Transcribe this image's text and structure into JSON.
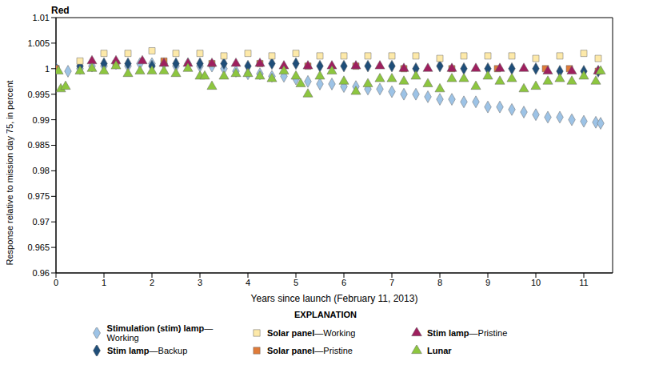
{
  "chart_data": {
    "type": "scatter",
    "title": "Red",
    "xlabel": "Years since launch (February 11, 2013)",
    "ylabel": "Response relative to mission day 75, in percent",
    "legend_title": "EXPLANATION",
    "legend": "bottom",
    "grid": false,
    "xlim": [
      0,
      11.6
    ],
    "xticks": [
      0,
      1,
      2,
      3,
      4,
      5,
      6,
      7,
      8,
      9,
      10,
      11
    ],
    "ylim": [
      0.96,
      1.01
    ],
    "yticks": [
      0.96,
      0.965,
      0.97,
      0.975,
      0.98,
      0.985,
      0.99,
      0.995,
      1,
      1.005,
      1.01
    ],
    "series": [
      {
        "name": "Stimulation (stim) lamp—Working",
        "color": "#9dc3e6",
        "marker": "diamond",
        "x": [
          0,
          0.25,
          0.5,
          0.75,
          1,
          1.25,
          1.5,
          1.75,
          2,
          2.25,
          2.5,
          2.75,
          3,
          3.25,
          3.5,
          3.75,
          4,
          4.25,
          4.5,
          4.75,
          5,
          5.25,
          5.5,
          5.75,
          6,
          6.25,
          6.5,
          6.75,
          7,
          7.25,
          7.5,
          7.75,
          8,
          8.25,
          8.5,
          8.75,
          9,
          9.25,
          9.5,
          9.75,
          10,
          10.25,
          10.5,
          10.75,
          11,
          11.25,
          11.35
        ],
        "values": [
          1.0,
          0.9995,
          1.0,
          1.0005,
          1.0005,
          1.001,
          1.0005,
          1.001,
          1.001,
          1.001,
          1.0005,
          1.001,
          1.0005,
          1.0005,
          1.0,
          0.9995,
          0.999,
          0.999,
          0.9985,
          0.9985,
          0.998,
          0.9975,
          0.997,
          0.997,
          0.9965,
          0.9965,
          0.996,
          0.996,
          0.9955,
          0.995,
          0.995,
          0.9945,
          0.994,
          0.994,
          0.9935,
          0.9935,
          0.9925,
          0.9925,
          0.992,
          0.9915,
          0.991,
          0.9905,
          0.9905,
          0.99,
          0.9897,
          0.9895,
          0.9893
        ]
      },
      {
        "name": "Stim lamp—Backup",
        "color": "#1f4e79",
        "marker": "diamond",
        "x": [
          0,
          0.5,
          1,
          1.5,
          2,
          2.5,
          3,
          3.5,
          4,
          4.5,
          5,
          5.5,
          6,
          6.5,
          7,
          7.5,
          8,
          8.5,
          9,
          9.5,
          10,
          10.5,
          11,
          11.3
        ],
        "values": [
          1.0,
          1.0005,
          1.001,
          1.001,
          1.0005,
          1.001,
          1.001,
          1.001,
          1.0005,
          1.001,
          1.001,
          1.0005,
          1.0005,
          1.0005,
          1.0005,
          1.0,
          1.0005,
          1.0,
          1.0,
          1.0,
          1.0,
          0.9995,
          0.9995,
          0.9995
        ]
      },
      {
        "name": "Solar panel—Working",
        "color": "#fde9a9",
        "marker": "square",
        "x": [
          0,
          0.5,
          1,
          1.5,
          2,
          2.5,
          3,
          3.5,
          4,
          4.5,
          5,
          5.5,
          6,
          6.5,
          7,
          7.5,
          8,
          8.5,
          9,
          9.5,
          10,
          10.5,
          11,
          11.3
        ],
        "values": [
          1.0,
          1.0015,
          1.003,
          1.003,
          1.0035,
          1.003,
          1.003,
          1.0025,
          1.003,
          1.0025,
          1.003,
          1.0025,
          1.0025,
          1.0025,
          1.0025,
          1.0025,
          1.002,
          1.0025,
          1.0025,
          1.0025,
          1.002,
          1.0025,
          1.003,
          1.002
        ]
      },
      {
        "name": "Solar panel—Pristine",
        "color": "#e07b39",
        "marker": "square",
        "x": [
          0,
          1.25,
          2.25,
          3.25,
          4.25,
          5.25,
          6.25,
          7.25,
          8.25,
          9.2,
          10.2,
          10.7,
          11.3
        ],
        "values": [
          1.0,
          1.001,
          1.0015,
          1.001,
          1.001,
          1.0005,
          1.0005,
          1.0,
          1.0,
          1.0,
          1.0,
          1.0,
          0.9995
        ]
      },
      {
        "name": "Stim lamp—Pristine",
        "color": "#9e1f5e",
        "marker": "triangle",
        "x": [
          0.75,
          1.25,
          1.8,
          2.25,
          2.75,
          3.25,
          3.75,
          4.25,
          4.75,
          5.25,
          5.75,
          6.25,
          6.75,
          7.25,
          7.75,
          8.25,
          8.75,
          9.25,
          9.75,
          10.25,
          10.75,
          11.3
        ],
        "values": [
          1.0015,
          1.0015,
          1.0015,
          1.001,
          1.001,
          1.001,
          1.001,
          1.001,
          1.0005,
          1.0005,
          1.0005,
          1.0005,
          1.0005,
          1.0,
          1.0,
          1.0,
          1.0,
          1.0,
          1.0,
          0.9995,
          0.9995,
          0.9995
        ]
      },
      {
        "name": "Lunar",
        "color": "#8dc63f",
        "marker": "triangle",
        "x": [
          0.05,
          0.1,
          0.2,
          0.5,
          0.75,
          1,
          1.25,
          1.5,
          1.75,
          2,
          2.25,
          2.5,
          2.75,
          3,
          3.1,
          3.25,
          3.5,
          3.75,
          4,
          4.25,
          4.5,
          4.75,
          5,
          5.1,
          5.25,
          5.5,
          5.75,
          6,
          6.25,
          6.5,
          6.75,
          7,
          7.25,
          7.5,
          7.75,
          8,
          8.25,
          8.5,
          8.75,
          9,
          9.25,
          9.5,
          9.75,
          10,
          10.25,
          10.5,
          10.75,
          11,
          11.25,
          11.35
        ],
        "values": [
          0.9995,
          0.996,
          0.9965,
          0.9995,
          1.0,
          0.9995,
          1.0005,
          0.999,
          0.9995,
          0.9995,
          0.9995,
          0.999,
          1.0,
          0.9985,
          0.9985,
          0.9965,
          0.9985,
          0.999,
          0.999,
          0.9985,
          0.998,
          0.9995,
          0.9985,
          0.997,
          0.995,
          0.9985,
          0.9995,
          0.9975,
          0.9955,
          0.997,
          0.998,
          0.998,
          0.9975,
          0.9985,
          0.997,
          0.996,
          0.998,
          0.998,
          0.9965,
          0.9985,
          0.9975,
          0.998,
          0.996,
          0.9965,
          0.9975,
          0.998,
          0.9975,
          0.9985,
          0.9975,
          0.9995
        ]
      }
    ]
  }
}
